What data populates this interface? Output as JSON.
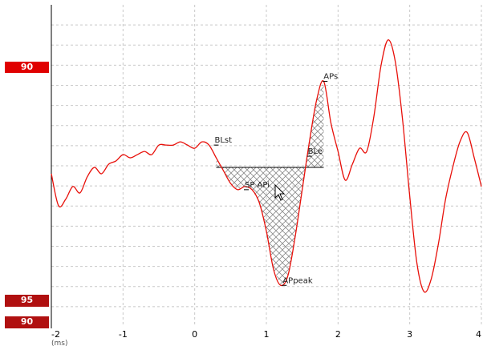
{
  "chart_data": {
    "type": "line",
    "xlim": [
      -2,
      4
    ],
    "x_ticks": [
      "-2",
      "-1",
      "0",
      "1",
      "2",
      "3",
      "4"
    ],
    "axis_unit_label": "(ms)",
    "grid": true,
    "grid_style": "dashed",
    "series": [
      {
        "color": "#e8100a",
        "x": [
          -2.0,
          -1.9,
          -1.8,
          -1.7,
          -1.6,
          -1.5,
          -1.4,
          -1.3,
          -1.2,
          -1.1,
          -1.0,
          -0.9,
          -0.8,
          -0.7,
          -0.6,
          -0.5,
          -0.4,
          -0.3,
          -0.2,
          -0.1,
          0.0,
          0.1,
          0.2,
          0.3,
          0.4,
          0.5,
          0.6,
          0.7,
          0.8,
          0.9,
          1.0,
          1.1,
          1.2,
          1.3,
          1.4,
          1.5,
          1.6,
          1.7,
          1.8,
          1.9,
          2.0,
          2.1,
          2.2,
          2.3,
          2.4,
          2.5,
          2.6,
          2.7,
          2.8,
          2.9,
          3.0,
          3.1,
          3.2,
          3.3,
          3.4,
          3.5,
          3.6,
          3.7,
          3.8,
          3.9,
          4.0
        ],
        "y": [
          0.0,
          -1.0,
          -0.8,
          -0.4,
          -0.6,
          -0.1,
          0.2,
          0.0,
          0.3,
          0.4,
          0.6,
          0.5,
          0.6,
          0.7,
          0.6,
          0.9,
          0.9,
          0.9,
          1.0,
          0.9,
          0.8,
          1.0,
          0.9,
          0.5,
          0.1,
          -0.3,
          -0.5,
          -0.4,
          -0.5,
          -0.9,
          -1.8,
          -3.0,
          -3.5,
          -3.2,
          -2.0,
          -0.5,
          1.0,
          2.3,
          2.9,
          1.6,
          0.7,
          -0.2,
          0.3,
          0.8,
          0.7,
          1.8,
          3.4,
          4.2,
          3.5,
          1.7,
          -0.7,
          -2.8,
          -3.7,
          -3.3,
          -2.2,
          -0.8,
          0.2,
          1.0,
          1.3,
          0.5,
          -0.4
        ]
      }
    ],
    "shaded_area": {
      "x_start": 0.3,
      "x_end": 1.8,
      "baseline_y": 0.2,
      "pattern": "crosshatch"
    },
    "annotations": [
      {
        "text": "BLst",
        "x": 0.3,
        "y": 0.9
      },
      {
        "text": "BLe",
        "x": 1.6,
        "y": 0.55
      },
      {
        "text": "SP APi",
        "x": 0.72,
        "y": -0.5
      },
      {
        "text": "APpeak",
        "x": 1.25,
        "y": -3.5
      },
      {
        "text": "APs",
        "x": 1.82,
        "y": 2.9
      }
    ]
  },
  "left_markers": [
    {
      "label": "90",
      "level": "upper"
    },
    {
      "label": "95",
      "level": "bottom-upper"
    },
    {
      "label": "90",
      "level": "bottom-lower"
    }
  ],
  "colors": {
    "trace": "#e8100a",
    "marker_bright": "#e00000",
    "marker_dark": "#b01010",
    "grid": "#c8c8c8",
    "hatch": "#8a8a8a"
  },
  "pointer": {
    "icon": "arrow-cursor-icon"
  }
}
